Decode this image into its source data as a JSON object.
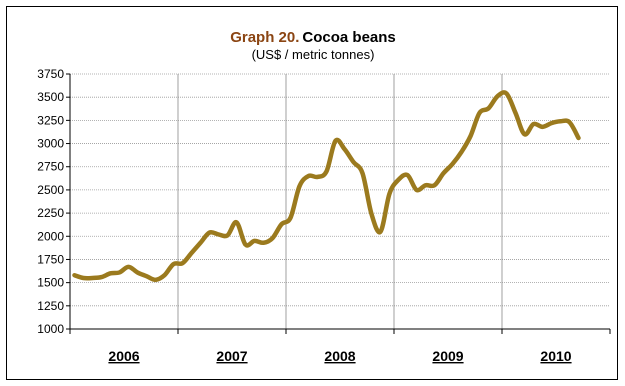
{
  "title": {
    "prefix": "Graph 20.",
    "main": "Cocoa beans",
    "subtitle": "(US$ / metric tonnes)"
  },
  "chart_data": {
    "type": "line",
    "title": "Graph 20. Cocoa beans",
    "subtitle": "(US$ / metric tonnes)",
    "ylim": [
      1000,
      3750
    ],
    "y_ticks": [
      "1000",
      "1250",
      "1500",
      "1750",
      "2000",
      "2250",
      "2500",
      "2750",
      "3000",
      "3250",
      "3500",
      "3750"
    ],
    "x_categories": [
      "2006",
      "2007",
      "2008",
      "2009",
      "2010"
    ],
    "grid": true,
    "legend": "none",
    "line_color": "#9B7A1E",
    "series": [
      {
        "x_months": [
          0,
          1,
          2,
          3,
          4,
          5,
          6,
          7,
          8,
          9,
          10,
          11,
          12,
          13,
          14,
          15,
          16,
          17,
          18,
          19,
          20,
          21,
          22,
          23,
          24,
          25,
          26,
          27,
          28,
          29,
          30,
          31,
          32,
          33,
          34,
          35,
          36,
          37,
          38,
          39,
          40,
          41,
          42,
          43,
          44,
          45,
          46,
          47,
          48,
          49,
          50,
          51,
          52,
          53,
          54,
          55,
          56
        ],
        "values": [
          1580,
          1550,
          1550,
          1560,
          1600,
          1610,
          1670,
          1610,
          1570,
          1530,
          1580,
          1700,
          1710,
          1820,
          1930,
          2040,
          2020,
          2010,
          2150,
          1910,
          1950,
          1930,
          1980,
          2130,
          2200,
          2540,
          2650,
          2640,
          2700,
          3030,
          2940,
          2800,
          2680,
          2240,
          2050,
          2460,
          2610,
          2660,
          2500,
          2550,
          2550,
          2680,
          2780,
          2910,
          3080,
          3330,
          3380,
          3510,
          3540,
          3330,
          3100,
          3210,
          3180,
          3220,
          3240,
          3230,
          3060
        ]
      }
    ]
  }
}
